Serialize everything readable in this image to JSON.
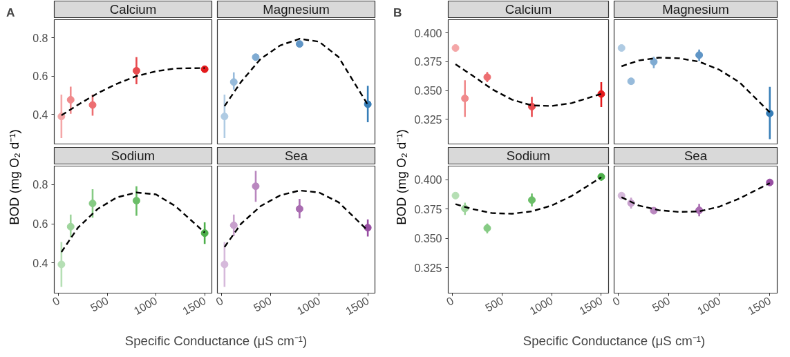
{
  "chart_data": [
    {
      "type": "scatter",
      "title": "Calcium",
      "ylabel": "BOD (mg O₂ d⁻¹)",
      "annotations": [
        "A"
      ],
      "x": [
        30,
        125,
        350,
        800,
        1500
      ],
      "xlim": [
        -43.5,
        1573.5
      ],
      "xticks": [
        0,
        500,
        1000,
        1500
      ],
      "ylim": [
        0.245,
        0.895
      ],
      "yticks": [
        0.4,
        0.6,
        0.8
      ],
      "grid": false,
      "marker": "circle",
      "tick_labels": "y",
      "series": [
        {
          "colors": [
            "#f4a6a7",
            "#f08a8c",
            "#ed6e71",
            "#e84c50",
            "#e41a1c"
          ],
          "values": [
            0.389,
            0.476,
            0.449,
            0.628,
            0.636
          ],
          "errors": [
            [
              0.276,
              0.503
            ],
            [
              0.403,
              0.545
            ],
            [
              0.393,
              0.503
            ],
            [
              0.557,
              0.699
            ],
            null
          ]
        },
        {
          "type": "line",
          "color": "#000000",
          "line_style": "dashed",
          "marker": "none",
          "x": [
            30,
            200,
            400,
            600,
            800,
            1000,
            1200,
            1500
          ],
          "values": [
            0.395,
            0.45,
            0.51,
            0.56,
            0.6,
            0.625,
            0.64,
            0.642
          ]
        }
      ]
    },
    {
      "type": "scatter",
      "title": "Magnesium",
      "x": [
        30,
        125,
        350,
        800,
        1500
      ],
      "xlim": [
        -43.5,
        1573.5
      ],
      "xticks": [
        0,
        500,
        1000,
        1500
      ],
      "ylim": [
        0.245,
        0.895
      ],
      "yticks": [
        0.4,
        0.6,
        0.8
      ],
      "grid": false,
      "marker": "circle",
      "tick_labels": false,
      "series": [
        {
          "colors": [
            "#afcbe3",
            "#97bbdb",
            "#7fabd2",
            "#5f95c6",
            "#377eb8"
          ],
          "values": [
            0.389,
            0.569,
            0.699,
            0.768,
            0.453
          ],
          "errors": [
            [
              0.276,
              0.503
            ],
            [
              0.529,
              0.62
            ],
            null,
            [
              0.755,
              0.785
            ],
            [
              0.359,
              0.549
            ]
          ]
        },
        {
          "type": "line",
          "color": "#000000",
          "line_style": "dashed",
          "marker": "none",
          "x": [
            30,
            200,
            400,
            600,
            800,
            1000,
            1200,
            1500
          ],
          "values": [
            0.443,
            0.57,
            0.69,
            0.76,
            0.795,
            0.78,
            0.7,
            0.45
          ]
        }
      ]
    },
    {
      "type": "scatter",
      "title": "Calcium",
      "ylabel": "BOD (mg O₂ d⁻¹)",
      "annotations": [
        "B"
      ],
      "x": [
        30,
        125,
        350,
        800,
        1500
      ],
      "xlim": [
        -43.5,
        1573.5
      ],
      "xticks": [
        0,
        500,
        1000,
        1500
      ],
      "ylim": [
        0.3035,
        0.4115
      ],
      "yticks": [
        {
          "value": 0.325,
          "label": "0.325"
        },
        {
          "value": 0.35,
          "label": "0.350"
        },
        {
          "value": 0.375,
          "label": "0.375"
        },
        {
          "value": 0.4,
          "label": "0.400"
        }
      ],
      "grid": false,
      "marker": "circle",
      "tick_labels": "y",
      "series": [
        {
          "colors": [
            "#f4a6a7",
            "#f08a8c",
            "#ed6e71",
            "#e84c50",
            "#e41a1c"
          ],
          "values": [
            0.3869,
            0.3431,
            0.3616,
            0.336,
            0.3469
          ],
          "errors": [
            null,
            [
              0.3271,
              0.3589
            ],
            [
              0.3572,
              0.3661
            ],
            [
              0.3271,
              0.3445
            ],
            [
              0.3356,
              0.3572
            ]
          ]
        },
        {
          "type": "line",
          "color": "#000000",
          "line_style": "dashed",
          "marker": "none",
          "x": [
            30,
            200,
            400,
            600,
            800,
            1000,
            1200,
            1500
          ],
          "values": [
            0.3728,
            0.363,
            0.351,
            0.342,
            0.337,
            0.3365,
            0.339,
            0.347
          ]
        }
      ]
    },
    {
      "type": "scatter",
      "title": "Magnesium",
      "x": [
        30,
        125,
        350,
        800,
        1500
      ],
      "xlim": [
        -43.5,
        1573.5
      ],
      "xticks": [
        0,
        500,
        1000,
        1500
      ],
      "ylim": [
        0.3035,
        0.4115
      ],
      "yticks": [
        0.325,
        0.35,
        0.375,
        0.4
      ],
      "grid": false,
      "marker": "circle",
      "tick_labels": false,
      "series": [
        {
          "colors": [
            "#afcbe3",
            "#97bbdb",
            "#7fabd2",
            "#5f95c6",
            "#377eb8"
          ],
          "values": [
            0.3869,
            0.358,
            0.3749,
            0.3807,
            0.3301
          ],
          "errors": [
            null,
            null,
            [
              0.3693,
              0.3793
            ],
            [
              0.3756,
              0.3856
            ],
            [
              0.3077,
              0.3532
            ]
          ]
        },
        {
          "type": "line",
          "color": "#000000",
          "line_style": "dashed",
          "marker": "none",
          "x": [
            30,
            200,
            400,
            600,
            800,
            1000,
            1200,
            1500
          ],
          "values": [
            0.371,
            0.376,
            0.3785,
            0.378,
            0.375,
            0.368,
            0.357,
            0.331
          ]
        }
      ]
    },
    {
      "type": "scatter",
      "title": "Sodium",
      "xlabel": "Specific Conductance (μS cm⁻¹)",
      "x": [
        30,
        125,
        350,
        800,
        1500
      ],
      "xlim": [
        -43.5,
        1573.5
      ],
      "xticks": [
        0,
        500,
        1000,
        1500
      ],
      "ylim": [
        0.245,
        0.895
      ],
      "yticks": [
        0.4,
        0.6,
        0.8
      ],
      "grid": false,
      "marker": "circle",
      "series": [
        {
          "colors": [
            "#b5dfb4",
            "#9ed59c",
            "#86cb84",
            "#6bbe68",
            "#4daf4a"
          ],
          "values": [
            0.392,
            0.585,
            0.704,
            0.718,
            0.552
          ],
          "errors": [
            [
              0.277,
              0.506
            ],
            [
              0.53,
              0.647
            ],
            [
              0.631,
              0.777
            ],
            [
              0.641,
              0.792
            ],
            [
              0.497,
              0.607
            ]
          ]
        },
        {
          "type": "line",
          "color": "#000000",
          "line_style": "dashed",
          "marker": "none",
          "x": [
            30,
            200,
            400,
            600,
            800,
            1000,
            1200,
            1500
          ],
          "values": [
            0.455,
            0.58,
            0.675,
            0.735,
            0.76,
            0.75,
            0.69,
            0.555
          ]
        }
      ]
    },
    {
      "type": "scatter",
      "title": "Sea",
      "x": [
        30,
        125,
        350,
        800,
        1500
      ],
      "xlim": [
        -43.5,
        1573.5
      ],
      "xticks": [
        0,
        500,
        1000,
        1500
      ],
      "ylim": [
        0.245,
        0.895
      ],
      "yticks": [
        0.4,
        0.6,
        0.8
      ],
      "grid": false,
      "marker": "circle",
      "tick_labels": "x",
      "series": [
        {
          "colors": [
            "#d6b9db",
            "#c8a0cd",
            "#b987bf",
            "#a96cb1",
            "#984ea3"
          ],
          "values": [
            0.392,
            0.592,
            0.792,
            0.676,
            0.58
          ],
          "errors": [
            [
              0.277,
              0.506
            ],
            [
              0.536,
              0.647
            ],
            [
              0.712,
              0.87
            ],
            [
              0.627,
              0.727
            ],
            [
              0.535,
              0.622
            ]
          ]
        },
        {
          "type": "line",
          "color": "#000000",
          "line_style": "dashed",
          "marker": "none",
          "x": [
            30,
            200,
            400,
            600,
            800,
            1000,
            1200,
            1500
          ],
          "values": [
            0.481,
            0.6,
            0.69,
            0.745,
            0.77,
            0.76,
            0.71,
            0.565
          ]
        }
      ]
    },
    {
      "type": "scatter",
      "title": "Sodium",
      "xlabel": "Specific Conductance (μS cm⁻¹)",
      "x": [
        30,
        125,
        350,
        800,
        1500
      ],
      "xlim": [
        -43.5,
        1573.5
      ],
      "xticks": [
        0,
        500,
        1000,
        1500
      ],
      "ylim": [
        0.3035,
        0.4115
      ],
      "yticks": [
        {
          "value": 0.325,
          "label": "0.325"
        },
        {
          "value": 0.35,
          "label": "0.350"
        },
        {
          "value": 0.375,
          "label": "0.375"
        },
        {
          "value": 0.4,
          "label": "0.400"
        }
      ],
      "grid": false,
      "marker": "circle",
      "series": [
        {
          "colors": [
            "#b5dfb4",
            "#9ed59c",
            "#86cb84",
            "#6bbe68",
            "#4daf4a"
          ],
          "values": [
            0.3864,
            0.3754,
            0.3587,
            0.3826,
            0.4024
          ],
          "errors": [
            null,
            [
              0.3699,
              0.3804
            ],
            [
              0.3543,
              0.3627
            ],
            [
              0.3771,
              0.3881
            ],
            [
              0.3991,
              0.4051
            ]
          ]
        },
        {
          "type": "line",
          "color": "#000000",
          "line_style": "dashed",
          "marker": "none",
          "x": [
            30,
            200,
            400,
            600,
            800,
            1000,
            1200,
            1500
          ],
          "values": [
            0.3791,
            0.375,
            0.3715,
            0.371,
            0.373,
            0.378,
            0.386,
            0.402
          ]
        }
      ]
    },
    {
      "type": "scatter",
      "title": "Sea",
      "x": [
        30,
        125,
        350,
        800,
        1500
      ],
      "xlim": [
        -43.5,
        1573.5
      ],
      "xticks": [
        0,
        500,
        1000,
        1500
      ],
      "ylim": [
        0.3035,
        0.4115
      ],
      "yticks": [
        0.325,
        0.35,
        0.375,
        0.4
      ],
      "grid": false,
      "marker": "circle",
      "tick_labels": "x",
      "series": [
        {
          "colors": [
            "#d6b9db",
            "#c8a0cd",
            "#b987bf",
            "#a96cb1",
            "#984ea3"
          ],
          "values": [
            0.3864,
            0.38,
            0.3736,
            0.3739,
            0.3976
          ],
          "errors": [
            null,
            [
              0.3754,
              0.3846
            ],
            null,
            [
              0.3688,
              0.3794
            ],
            null
          ]
        },
        {
          "type": "line",
          "color": "#000000",
          "line_style": "dashed",
          "marker": "none",
          "x": [
            30,
            200,
            400,
            600,
            800,
            1000,
            1200,
            1500
          ],
          "values": [
            0.385,
            0.378,
            0.374,
            0.3725,
            0.373,
            0.377,
            0.384,
            0.397
          ]
        }
      ]
    }
  ]
}
